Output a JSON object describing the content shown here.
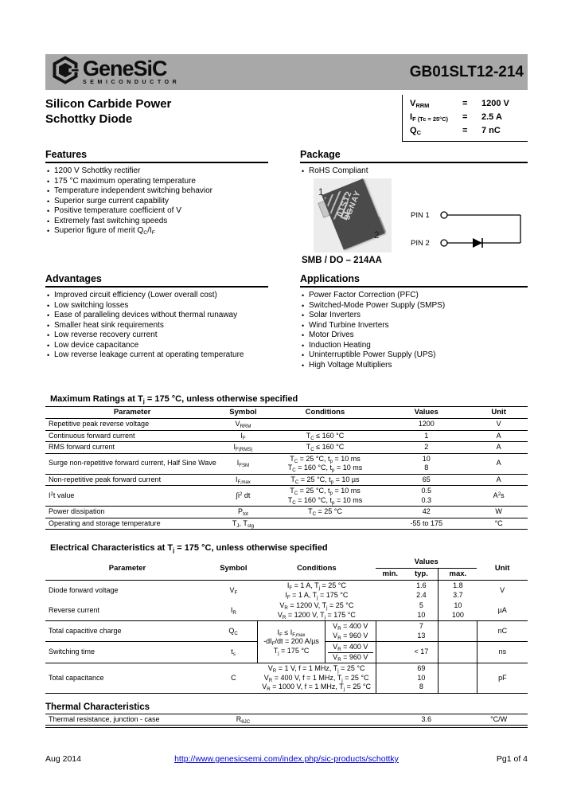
{
  "header": {
    "brand": "GeneSiC",
    "brand_sub": "SEMICONDUCTOR",
    "part_number": "GB01SLT12-214"
  },
  "title": {
    "line1": "Silicon Carbide Power",
    "line2": "Schottky Diode"
  },
  "specs": {
    "rows": [
      {
        "symbol": "V~RRM~",
        "eq": "=",
        "value": "1200 V"
      },
      {
        "symbol": "I~F (Tc = 25°C)~",
        "eq": "=",
        "value": "2.5 A"
      },
      {
        "symbol": "Q~C~",
        "eq": "=",
        "value": "7 nC"
      }
    ]
  },
  "features": {
    "heading": "Features",
    "items": [
      "1200 V Schottky rectifier",
      "175 °C maximum operating temperature",
      "Temperature independent switching behavior",
      "Superior surge current capability",
      "Positive temperature coefficient of V",
      "Extremely fast switching speeds",
      "Superior figure of merit Q~C~/I~F~"
    ]
  },
  "package": {
    "heading": "Package",
    "rohs": "RoHS Compliant",
    "pin1_label": "1",
    "pin2_label": "2",
    "marking_line1": "01S12",
    "marking_line2": "3GNAY",
    "caption": "SMB / DO – 214AA",
    "schematic": {
      "pin1": "PIN 1",
      "pin2": "PIN 2"
    }
  },
  "advantages": {
    "heading": "Advantages",
    "items": [
      "Improved circuit efficiency (Lower overall cost)",
      "Low switching losses",
      "Ease of paralleling devices without thermal runaway",
      "Smaller heat sink requirements",
      "Low reverse recovery current",
      "Low device capacitance",
      "Low reverse leakage current at operating temperature"
    ]
  },
  "applications": {
    "heading": "Applications",
    "items": [
      "Power Factor Correction (PFC)",
      "Switched-Mode Power Supply (SMPS)",
      "Solar Inverters",
      "Wind Turbine Inverters",
      "Motor Drives",
      "Induction Heating",
      "Uninterruptible Power Supply (UPS)",
      "High Voltage Multipliers"
    ]
  },
  "max_ratings": {
    "title": "Maximum Ratings at T~j~ = 175 °C, unless otherwise specified",
    "headers": {
      "parameter": "Parameter",
      "symbol": "Symbol",
      "conditions": "Conditions",
      "values": "Values",
      "unit": "Unit"
    },
    "rows": [
      {
        "parameter": "Repetitive peak reverse voltage",
        "symbol": "V~RRM~",
        "cond": [
          ""
        ],
        "values": [
          "1200"
        ],
        "unit": "V"
      },
      {
        "parameter": "Continuous forward current",
        "symbol": "I~F~",
        "cond": [
          "T~C~ ≤ 160 °C"
        ],
        "values": [
          "1"
        ],
        "unit": "A"
      },
      {
        "parameter": "RMS forward current",
        "symbol": "I~F(RMS)~",
        "cond": [
          "T~C~ ≤ 160 °C"
        ],
        "values": [
          "2"
        ],
        "unit": "A"
      },
      {
        "parameter": "Surge non-repetitive forward current, Half Sine Wave",
        "symbol": "I~FSM~",
        "cond": [
          "T~C~ = 25 °C, t~p~ = 10 ms",
          "T~C~ = 160 °C, t~p~ = 10 ms"
        ],
        "values": [
          "10",
          "8"
        ],
        "unit": "A"
      },
      {
        "parameter": "Non-repetitive peak forward current",
        "symbol": "I~F,max~",
        "cond": [
          "T~C~ = 25 °C, t~p~ = 10 µs"
        ],
        "values": [
          "65"
        ],
        "unit": "A"
      },
      {
        "parameter": "I^2^t value",
        "symbol": "∫i^2^ dt",
        "cond": [
          "T~C~ = 25 °C, t~p~ = 10 ms",
          "T~C~ = 160 °C, t~p~ = 10 ms"
        ],
        "values": [
          "0.5",
          "0.3"
        ],
        "unit": "A^2^s"
      },
      {
        "parameter": "Power dissipation",
        "symbol": "P~tot~",
        "cond": [
          "T~C~ = 25 °C"
        ],
        "values": [
          "42"
        ],
        "unit": "W"
      },
      {
        "parameter": "Operating and storage temperature",
        "symbol": "T~J~, T~stg~",
        "cond": [
          ""
        ],
        "values": [
          "-55 to 175"
        ],
        "unit": "°C"
      }
    ]
  },
  "electrical": {
    "title": "Electrical Characteristics at T~j~ = 175 °C, unless otherwise specified",
    "headers": {
      "parameter": "Parameter",
      "symbol": "Symbol",
      "conditions": "Conditions",
      "values": "Values",
      "min": "min.",
      "typ": "typ.",
      "max": "max.",
      "unit": "Unit"
    },
    "vf": {
      "parameter": "Diode forward voltage",
      "symbol": "V~F~",
      "cond": [
        "I~F~ = 1 A, T~j~ = 25 °C",
        "I~F~ = 1 A, T~j~ = 175 °C"
      ],
      "typ": [
        "1.6",
        "2.4"
      ],
      "max": [
        "1.8",
        "3.7"
      ],
      "unit": "V"
    },
    "ir": {
      "parameter": "Reverse current",
      "symbol": "I~R~",
      "cond": [
        "V~R~ = 1200 V, T~j~ = 25 °C",
        "V~R~ = 1200 V, T~j~ = 175 °C"
      ],
      "typ": [
        "5",
        "10"
      ],
      "max": [
        "10",
        "100"
      ],
      "unit": "µA"
    },
    "shared_cond": [
      "I~F~ ≤ I~F,max~",
      "-dI~F~/dt = 200 A/µs",
      "T~j~ = 175 °C"
    ],
    "qc": {
      "parameter": "Total capacitive charge",
      "symbol": "Q~C~",
      "subcond": [
        "V~R~ = 400 V",
        "V~R~ = 960 V"
      ],
      "typ": [
        "7",
        "13"
      ],
      "unit": "nC"
    },
    "ts": {
      "parameter": "Switching time",
      "symbol": "t~s~",
      "subcond": [
        "V~R~ = 400 V",
        "V~R~ = 960 V"
      ],
      "typ": "< 17",
      "unit": "ns"
    },
    "c": {
      "parameter": "Total capacitance",
      "symbol": "C",
      "cond": [
        "V~R~ = 1 V, f = 1 MHz, T~j~ = 25 °C",
        "V~R~ = 400 V, f = 1 MHz, T~j~ = 25 °C",
        "V~R~ = 1000 V, f = 1 MHz, T~j~ = 25 °C"
      ],
      "typ": [
        "69",
        "10",
        "8"
      ],
      "unit": "pF"
    }
  },
  "thermal": {
    "title": "Thermal Characteristics",
    "row": {
      "parameter": "Thermal resistance, junction - case",
      "symbol": "R~θJC~",
      "cond": "",
      "value": "3.6",
      "unit": "°C/W"
    }
  },
  "footer": {
    "date": "Aug 2014",
    "url": "http://www.genesicsemi.com/index.php/sic-products/schottky",
    "page": "Pg1 of 4"
  }
}
